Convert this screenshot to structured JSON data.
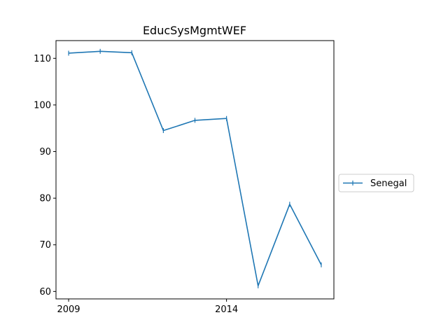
{
  "chart_data": {
    "type": "line",
    "title": "EducSysMgmtWEF",
    "xlabel": "",
    "ylabel": "",
    "x": [
      2009,
      2010,
      2011,
      2012,
      2013,
      2014,
      2015,
      2016,
      2017
    ],
    "series": [
      {
        "name": "Senegal",
        "color": "#1f77b4",
        "values": [
          111.1,
          111.5,
          111.2,
          94.5,
          96.7,
          97.1,
          61.2,
          78.7,
          65.7
        ]
      }
    ],
    "xlim": [
      2008.6,
      2017.4
    ],
    "ylim": [
      58.4,
      113.8
    ],
    "xticks": [
      2009,
      2014
    ],
    "yticks": [
      60,
      70,
      80,
      90,
      100,
      110
    ],
    "grid": false,
    "legend": "right-outside"
  }
}
